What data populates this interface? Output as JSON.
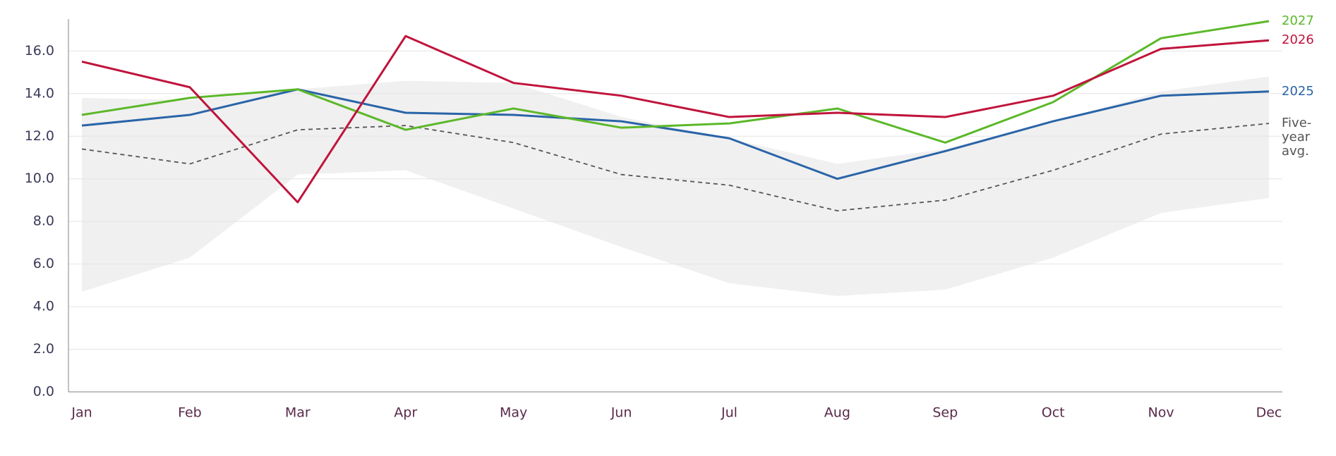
{
  "chart_data": {
    "type": "line",
    "categories": [
      "Jan",
      "Feb",
      "Mar",
      "Apr",
      "May",
      "Jun",
      "Jul",
      "Aug",
      "Sep",
      "Oct",
      "Nov",
      "Dec"
    ],
    "series": [
      {
        "name": "Five-year avg.",
        "color": "#555555",
        "dashed": true,
        "values": [
          11.4,
          10.7,
          12.3,
          12.5,
          11.7,
          10.2,
          9.7,
          8.5,
          9.0,
          10.4,
          12.1,
          12.6
        ]
      },
      {
        "name": "2025",
        "color": "#2a64a8",
        "values": [
          12.5,
          13.0,
          14.2,
          13.1,
          13.0,
          12.7,
          11.9,
          10.0,
          11.3,
          12.7,
          13.9,
          14.1
        ]
      },
      {
        "name": "2027",
        "color": "#5cb82a",
        "values": [
          13.0,
          13.8,
          14.2,
          12.3,
          13.3,
          12.4,
          12.6,
          13.3,
          11.7,
          13.6,
          16.6,
          17.4
        ]
      },
      {
        "name": "2026",
        "color": "#c0143c",
        "values": [
          15.5,
          14.3,
          8.9,
          16.7,
          14.5,
          13.9,
          12.9,
          13.1,
          12.9,
          13.9,
          16.1,
          16.5
        ]
      }
    ],
    "band": {
      "color": "#ebebeb",
      "upper": [
        13.8,
        13.7,
        14.2,
        14.6,
        14.5,
        12.9,
        11.9,
        10.7,
        11.4,
        12.7,
        14.1,
        14.8
      ],
      "lower": [
        4.7,
        6.3,
        10.2,
        10.4,
        8.6,
        6.8,
        5.1,
        4.5,
        4.8,
        6.3,
        8.4,
        9.1
      ]
    },
    "ylim": [
      0,
      17.5
    ],
    "yticks": [
      {
        "value": 0,
        "label": "0.0"
      },
      {
        "value": 2,
        "label": "2.0"
      },
      {
        "value": 4,
        "label": "4.0"
      },
      {
        "value": 6,
        "label": "6.0"
      },
      {
        "value": 8,
        "label": "8.0"
      },
      {
        "value": 10,
        "label": "10.0"
      },
      {
        "value": 12,
        "label": "12.0"
      },
      {
        "value": 14,
        "label": "14.0"
      },
      {
        "value": 16,
        "label": "16.0"
      }
    ],
    "grid": true
  }
}
